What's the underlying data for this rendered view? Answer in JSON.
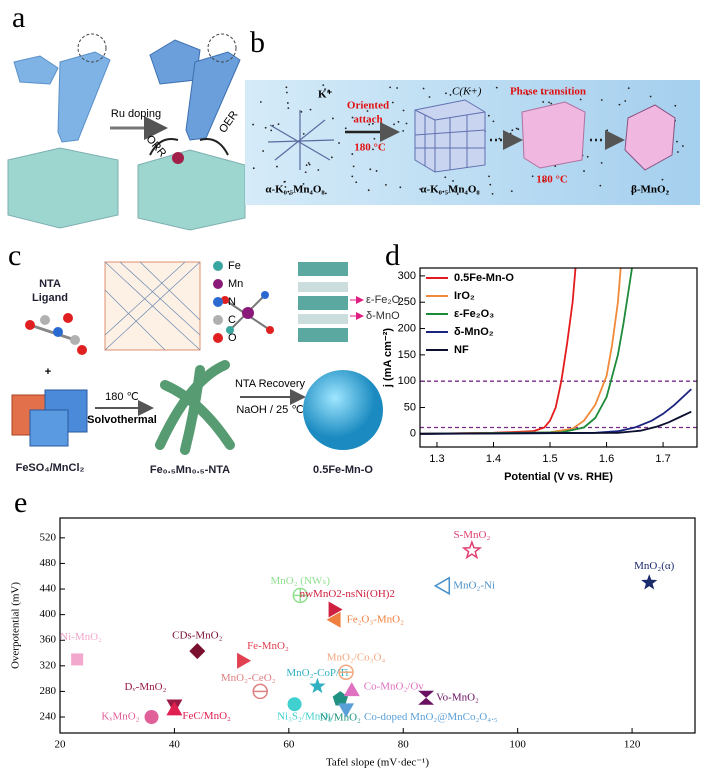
{
  "figure": {
    "panel_labels": [
      "a",
      "b",
      "c",
      "d",
      "e"
    ],
    "panel_a": {
      "arrow": "Ru doping",
      "orr": "ORR",
      "oer": "OER"
    },
    "panel_b": {
      "ion": "K⁺",
      "step1": "Oriented",
      "step1b": "attach",
      "temp1": "180 °C",
      "cluster": "C(K+)",
      "step2": "Phase transition",
      "temp2": "180 °C",
      "phase1": "α-K₀.₅Mn₄O₈",
      "phase2": "α-K₀.₅Mn₄O₈",
      "phase3": "β-MnO₂"
    },
    "panel_c": {
      "ligand1": "NTA",
      "ligand2": "Ligand",
      "plus": "+",
      "salts": "FeSO₄/MnCl₂",
      "temp": "180 ℃",
      "method": "Solvothermal",
      "precursor": "Fe₀.₅Mn₀.₅-NTA",
      "recovery": "NTA Recovery",
      "base": "NaOH / 25 ℃",
      "product": "0.5Fe-Mn-O",
      "elements": [
        {
          "name": "Fe",
          "color": "#3aa6a0"
        },
        {
          "name": "Mn",
          "color": "#8a1a7a"
        },
        {
          "name": "N",
          "color": "#2a6ad0"
        },
        {
          "name": "C",
          "color": "#b0b0b0"
        },
        {
          "name": "O",
          "color": "#e02020"
        }
      ],
      "phase_a": "ε-Fe₂O",
      "phase_b": "δ-MnO"
    }
  },
  "chart_data": [
    {
      "type": "line",
      "xlabel": "Potential (V vs. RHE)",
      "ylabel": "j (mA cm⁻²)",
      "xlim": [
        1.27,
        1.76
      ],
      "ylim": [
        -25,
        315
      ],
      "xticks": [
        1.3,
        1.4,
        1.5,
        1.6,
        1.7
      ],
      "yticks": [
        0,
        50,
        100,
        150,
        200,
        250,
        300
      ],
      "legend": "upper left",
      "reference_lines": [
        100,
        12
      ],
      "reference_color": "#7a2a8a",
      "series": [
        {
          "name": "0.5Fe-Mn-O",
          "color": "#e41a1c",
          "x": [
            1.27,
            1.4,
            1.47,
            1.49,
            1.5,
            1.51,
            1.52,
            1.53,
            1.54,
            1.545
          ],
          "values": [
            0,
            2,
            5,
            12,
            25,
            50,
            100,
            170,
            250,
            315
          ]
        },
        {
          "name": "IrO₂",
          "color": "#f08a3a",
          "x": [
            1.27,
            1.5,
            1.54,
            1.56,
            1.58,
            1.6,
            1.61,
            1.62,
            1.625
          ],
          "values": [
            0,
            3,
            10,
            25,
            55,
            110,
            170,
            250,
            315
          ]
        },
        {
          "name": "ε-Fe₂O₃",
          "color": "#1e8a3a",
          "x": [
            1.27,
            1.52,
            1.56,
            1.58,
            1.6,
            1.62,
            1.63,
            1.64,
            1.645
          ],
          "values": [
            0,
            3,
            12,
            30,
            70,
            150,
            210,
            280,
            315
          ]
        },
        {
          "name": "δ-MnO₂",
          "color": "#1a237e",
          "x": [
            1.27,
            1.58,
            1.62,
            1.65,
            1.68,
            1.7,
            1.72,
            1.75
          ],
          "values": [
            0,
            2,
            5,
            12,
            25,
            38,
            55,
            85
          ]
        },
        {
          "name": "NF",
          "color": "#0b1030",
          "x": [
            1.27,
            1.62,
            1.66,
            1.69,
            1.71,
            1.73,
            1.75
          ],
          "values": [
            0,
            2,
            6,
            14,
            22,
            32,
            42
          ]
        }
      ]
    },
    {
      "type": "scatter",
      "xlabel": "Tafel slope (mV·dec⁻¹)",
      "ylabel": "Overpotential (mV)",
      "xlim": [
        20,
        131
      ],
      "ylim": [
        215,
        551
      ],
      "xticks": [
        20,
        40,
        60,
        80,
        100,
        120
      ],
      "yticks": [
        240,
        280,
        320,
        360,
        400,
        440,
        480,
        520
      ],
      "series": [
        {
          "name": "Ni-MnO₂",
          "color": "#f2a8cc",
          "marker": "square",
          "x": [
            23
          ],
          "values": [
            330
          ]
        },
        {
          "name": "KₓMnO₂",
          "color": "#e0609a",
          "marker": "circle",
          "x": [
            36
          ],
          "values": [
            240
          ]
        },
        {
          "name": "Dᵥ-MnO₂",
          "color": "#9a1a44",
          "marker": "triangle-down",
          "x": [
            40
          ],
          "values": [
            258
          ]
        },
        {
          "name": "FeC/MnO₂",
          "color": "#e02050",
          "marker": "triangle-up",
          "x": [
            40
          ],
          "values": [
            252
          ]
        },
        {
          "name": "CDs-MnO₂",
          "color": "#7a1030",
          "marker": "diamond",
          "x": [
            44
          ],
          "values": [
            343
          ]
        },
        {
          "name": "Fe-MnO₂",
          "color": "#e04050",
          "marker": "triangle-right",
          "x": [
            52
          ],
          "values": [
            328
          ]
        },
        {
          "name": "MnO₂-CeO₂",
          "color": "#e08080",
          "marker": "circle-minus",
          "x": [
            55
          ],
          "values": [
            280
          ]
        },
        {
          "name": "MnO₂ (NWₛ)",
          "color": "#8ee08e",
          "marker": "circle-plus",
          "x": [
            62
          ],
          "values": [
            430
          ]
        },
        {
          "name": "MnO₂-CoP/Ti",
          "color": "#30b0c0",
          "marker": "star",
          "x": [
            65
          ],
          "values": [
            288
          ]
        },
        {
          "name": "Ni₃S₂/MnO₂",
          "color": "#40d0d0",
          "marker": "circle",
          "x": [
            61
          ],
          "values": [
            260
          ]
        },
        {
          "name": "nwMnO2-nsNi(OH)2",
          "color": "#d02040",
          "marker": "triangle-right",
          "x": [
            68
          ],
          "values": [
            408
          ]
        },
        {
          "name": "Fe₂O₃-MnO₂",
          "color": "#f08040",
          "marker": "triangle-left",
          "x": [
            68
          ],
          "values": [
            392
          ]
        },
        {
          "name": "Ni/MnO₂",
          "color": "#209080",
          "marker": "pentagon",
          "x": [
            69
          ],
          "values": [
            268
          ]
        },
        {
          "name": "MnO₂/Co₃O₄",
          "color": "#f0a880",
          "marker": "circle-minus",
          "x": [
            70
          ],
          "values": [
            310
          ]
        },
        {
          "name": "Co-MnO₂/Ov",
          "color": "#e070c0",
          "marker": "triangle-up",
          "x": [
            71
          ],
          "values": [
            282
          ]
        },
        {
          "name": "Co-doped MnO₂@MnCo₂O₄.₅",
          "color": "#5aa0d8",
          "marker": "triangle-down",
          "x": [
            70
          ],
          "values": [
            252
          ]
        },
        {
          "name": "Vo-MnO₂",
          "color": "#6a1060",
          "marker": "bowtie",
          "x": [
            84
          ],
          "values": [
            270
          ]
        },
        {
          "name": "MnO₂-Ni",
          "color": "#4a90c8",
          "marker": "triangle-left-open",
          "x": [
            87
          ],
          "values": [
            445
          ]
        },
        {
          "name": "S-MnO₂",
          "color": "#e04070",
          "marker": "star-open",
          "x": [
            92
          ],
          "values": [
            500
          ]
        },
        {
          "name": "MnO₂(α)",
          "color": "#1a2a6a",
          "marker": "star",
          "x": [
            123
          ],
          "values": [
            450
          ]
        }
      ]
    }
  ]
}
